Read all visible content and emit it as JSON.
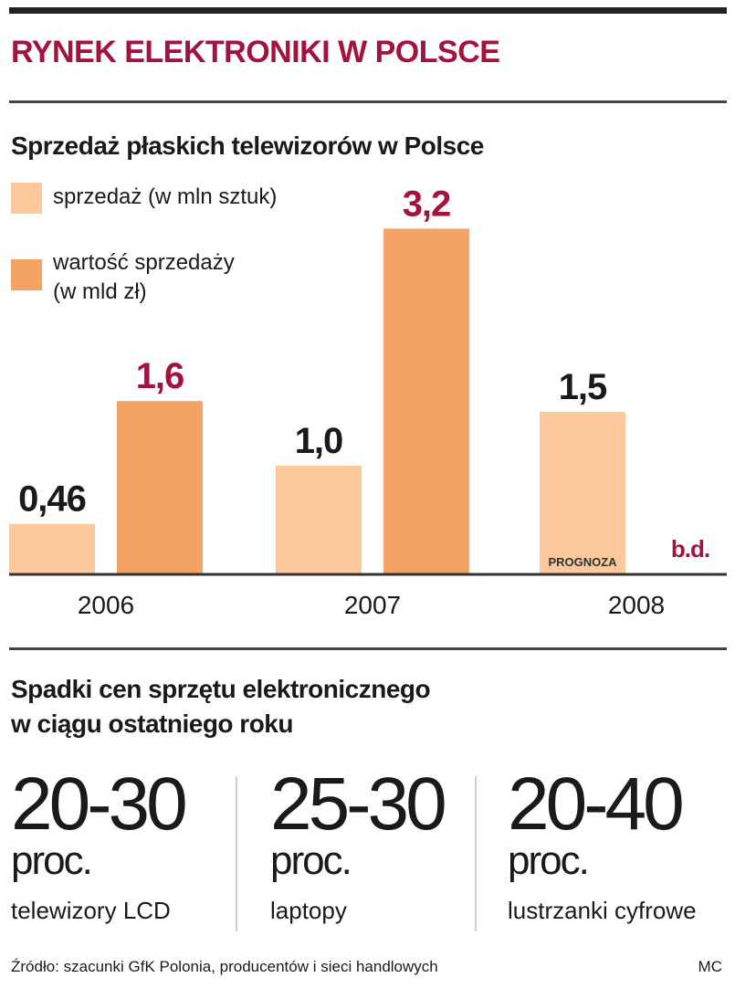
{
  "main_title": "RYNEK ELEKTRONIKI W POLSCE",
  "subtitle": "Sprzedaż płaskich telewizorów w Polsce",
  "colors": {
    "accent": "#a4133c",
    "light": "#fbc99c",
    "dark": "#f3a363",
    "text": "#1a1a1a"
  },
  "legend": [
    {
      "label_line1": "sprzedaż (w mln sztuk)",
      "label_line2": ""
    },
    {
      "label_line1": "wartość sprzedaży",
      "label_line2": "(w mld zł)"
    }
  ],
  "chart_data": {
    "type": "bar",
    "categories": [
      "2006",
      "2007",
      "2008"
    ],
    "series": [
      {
        "name": "sprzedaż (w mln sztuk)",
        "values": [
          0.46,
          1.0,
          1.5
        ],
        "labels": [
          "0,46",
          "1,0",
          "1,5"
        ]
      },
      {
        "name": "wartość sprzedaży (w mld zł)",
        "values": [
          1.6,
          3.2,
          null
        ],
        "labels": [
          "1,6",
          "3,2",
          "b.d."
        ]
      }
    ],
    "annotations": [
      {
        "category": "2008",
        "series": 0,
        "text": "PROGNOZA"
      }
    ],
    "title": "Sprzedaż płaskich telewizorów w Polsce",
    "legend": "top-left"
  },
  "section2_title_line1": "Spadki cen sprzętu elektronicznego",
  "section2_title_line2": "w ciągu ostatniego roku",
  "stats": [
    {
      "value": "20-30",
      "unit": "proc.",
      "label": "telewizory LCD"
    },
    {
      "value": "25-30",
      "unit": "proc.",
      "label": "laptopy"
    },
    {
      "value": "20-40",
      "unit": "proc.",
      "label": "lustrzanki cyfrowe"
    }
  ],
  "source": "Źródło: szacunki GfK Polonia, producentów i sieci handlowych",
  "credit": "MC"
}
